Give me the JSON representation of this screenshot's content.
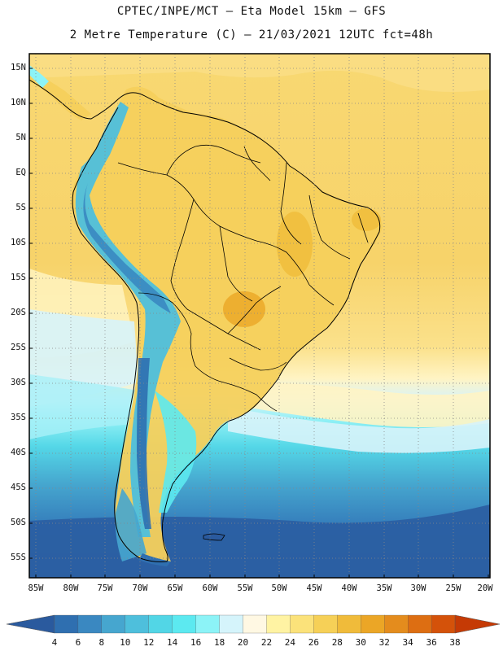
{
  "header": {
    "line1": "CPTEC/INPE/MCT –  Eta Model 15km – GFS",
    "line2": "2 Metre Temperature (C) – 21/03/2021 12UTC fct=48h"
  },
  "map": {
    "lat_labels": [
      "15N",
      "10N",
      "5N",
      "EQ",
      "5S",
      "10S",
      "15S",
      "20S",
      "25S",
      "30S",
      "35S",
      "40S",
      "45S",
      "50S",
      "55S"
    ],
    "lon_labels": [
      "85W",
      "80W",
      "75W",
      "70W",
      "65W",
      "60W",
      "55W",
      "50W",
      "45W",
      "40W",
      "35W",
      "30W",
      "25W",
      "20W"
    ],
    "extent": {
      "lon_min": -86,
      "lon_max": -20,
      "lat_min": -58,
      "lat_max": 16
    }
  },
  "colorbar": {
    "labels": [
      "4",
      "6",
      "8",
      "10",
      "12",
      "14",
      "16",
      "18",
      "20",
      "22",
      "24",
      "26",
      "28",
      "30",
      "32",
      "34",
      "36",
      "38"
    ],
    "colors": [
      "#2a5a9e",
      "#2f6fb0",
      "#3a88c1",
      "#46a6cf",
      "#4ebfdc",
      "#52d6e6",
      "#5ce9f0",
      "#8cf3f7",
      "#d5f4fb",
      "#fff8e3",
      "#fff3a3",
      "#fbe27a",
      "#f6d057",
      "#f0bb3a",
      "#eba626",
      "#e48c1d",
      "#dd6e12",
      "#d4520a",
      "#c53a05"
    ]
  }
}
